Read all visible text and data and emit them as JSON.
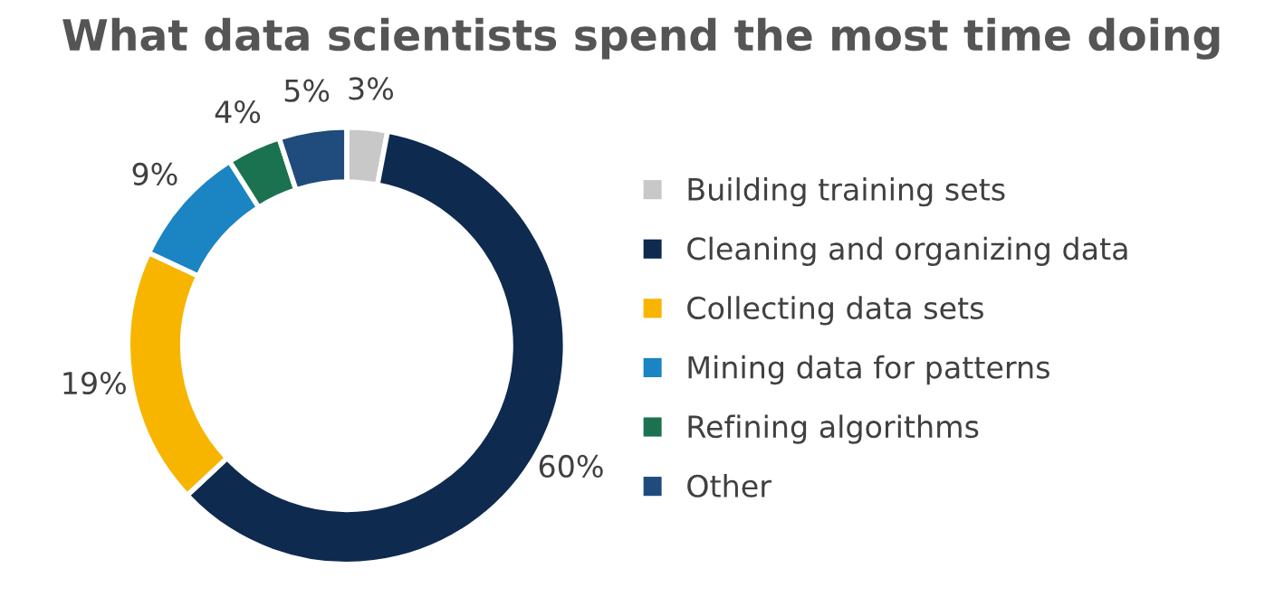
{
  "chart_data": {
    "type": "donut",
    "title": "What data scientists spend the most time doing",
    "categories": [
      "Building training sets",
      "Cleaning and organizing data",
      "Collecting data sets",
      "Mining data for patterns",
      "Refining algorithms",
      "Other"
    ],
    "values": [
      3,
      60,
      19,
      9,
      4,
      5
    ],
    "value_labels": [
      "3%",
      "60%",
      "19%",
      "9%",
      "4%",
      "5%"
    ],
    "colors": [
      "#c8c8c8",
      "#0e2a4f",
      "#f7b500",
      "#1b84c2",
      "#1a7250",
      "#1f4c7c"
    ],
    "legend": "right"
  }
}
